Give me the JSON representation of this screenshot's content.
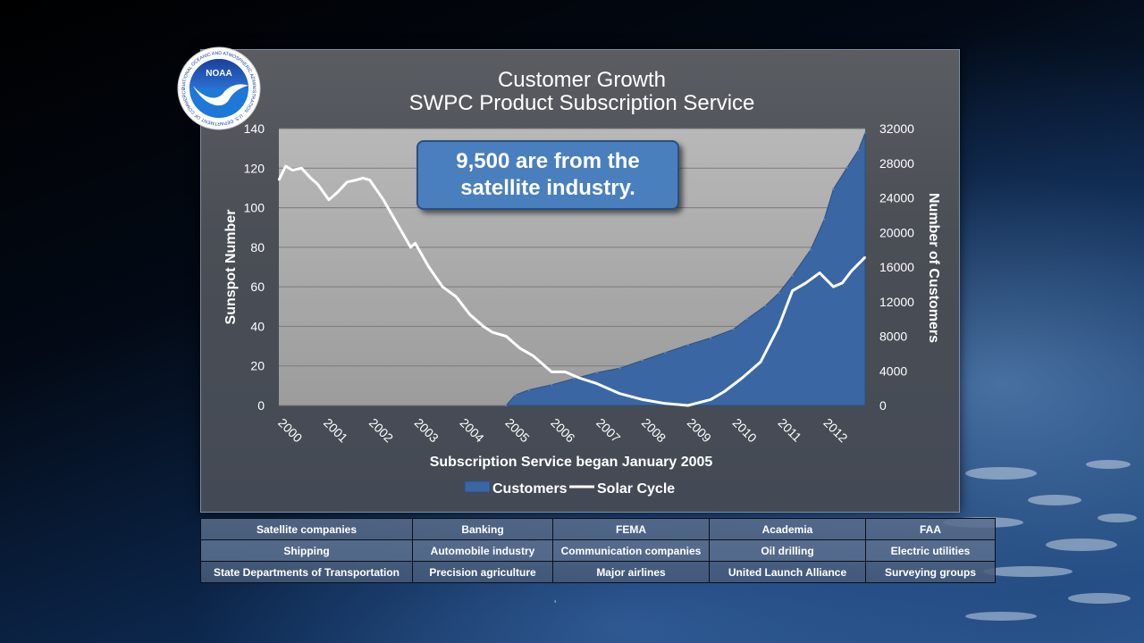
{
  "chart_data": {
    "type": "area",
    "title": "Customer Growth",
    "subtitle": "SWPC Product Subscription Service",
    "xlabel": "Subscription Service began January 2005",
    "ylabel_left": "Sunspot Number",
    "ylabel_right": "Number of Customers",
    "x_ticks": [
      "2000",
      "2001",
      "2002",
      "2003",
      "2004",
      "2005",
      "2006",
      "2007",
      "2008",
      "2009",
      "2010",
      "2011",
      "2012"
    ],
    "ylim_left": [
      0,
      140
    ],
    "yticks_left": [
      "0",
      "20",
      "40",
      "60",
      "80",
      "100",
      "120",
      "140"
    ],
    "ylim_right": [
      0,
      32000
    ],
    "yticks_right": [
      "0",
      "4000",
      "8000",
      "12000",
      "16000",
      "20000",
      "24000",
      "28000",
      "32000"
    ],
    "xlim": [
      2000,
      2012.9
    ],
    "grid": true,
    "legend_position": "bottom",
    "series": [
      {
        "name": "Customers",
        "kind": "area",
        "axis": "right",
        "color": "#3a67a3",
        "x": [
          2005.0,
          2005.2,
          2005.5,
          2006.0,
          2006.5,
          2007.0,
          2007.5,
          2008.0,
          2008.5,
          2009.0,
          2009.5,
          2010.0,
          2010.3,
          2010.7,
          2011.0,
          2011.3,
          2011.7,
          2012.0,
          2012.2,
          2012.5,
          2012.75,
          2012.9
        ],
        "values": [
          0,
          1200,
          1800,
          2400,
          3100,
          3800,
          4300,
          5200,
          6100,
          7000,
          7800,
          8800,
          10000,
          11500,
          13000,
          15000,
          18000,
          21500,
          25000,
          27500,
          29500,
          31500
        ]
      },
      {
        "name": "Solar Cycle",
        "kind": "line",
        "axis": "left",
        "color": "#ffffff",
        "x": [
          2000.0,
          2000.15,
          2000.3,
          2000.5,
          2000.7,
          2000.85,
          2001.1,
          2001.3,
          2001.5,
          2001.7,
          2001.85,
          2002.0,
          2002.3,
          2002.6,
          2002.9,
          2003.0,
          2003.3,
          2003.6,
          2003.9,
          2004.2,
          2004.5,
          2004.7,
          2005.0,
          2005.3,
          2005.6,
          2006.0,
          2006.3,
          2006.6,
          2007.0,
          2007.5,
          2008.0,
          2008.5,
          2009.0,
          2009.5,
          2009.8,
          2010.2,
          2010.6,
          2011.0,
          2011.3,
          2011.6,
          2011.9,
          2012.2,
          2012.4,
          2012.6,
          2012.9
        ],
        "values": [
          114,
          121,
          119,
          120,
          115,
          112,
          104,
          108,
          113,
          114,
          115,
          114,
          104,
          92,
          80,
          82,
          70,
          60,
          55,
          46,
          40,
          37,
          35,
          29,
          25,
          17,
          17,
          14,
          11,
          6,
          3,
          1,
          0,
          3,
          7,
          14,
          22,
          40,
          58,
          62,
          67,
          60,
          62,
          68,
          75
        ]
      }
    ],
    "annotation": "9,500 are from the satellite industry."
  },
  "sectors": {
    "rows": [
      [
        "Satellite companies",
        "Banking",
        "FEMA",
        "Academia",
        "FAA"
      ],
      [
        "Shipping",
        "Automobile industry",
        "Communication companies",
        "Oil drilling",
        "Electric utilities"
      ],
      [
        "State Departments of Transportation",
        "Precision agriculture",
        "Major airlines",
        "United Launch Alliance",
        "Surveying groups"
      ]
    ]
  },
  "logo": {
    "wordmark": "NOAA",
    "ring_text": "NATIONAL OCEANIC AND ATMOSPHERIC ADMINISTRATION · U.S. DEPARTMENT OF COMMERCE"
  },
  "colors": {
    "plot_bg": "#a9a9a9",
    "customers_fill": "#3a67a3",
    "solar_line": "#ffffff",
    "callout_bg": "#4a7fbd"
  }
}
